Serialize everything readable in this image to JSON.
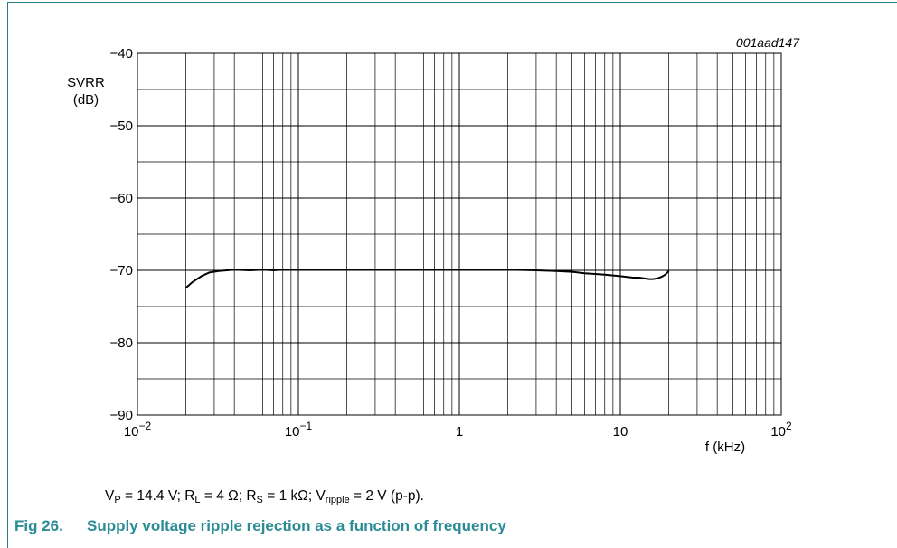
{
  "figure": {
    "doc_code": "001aad147",
    "conditions": {
      "vp": "14.4 V",
      "rl": "4 Ω",
      "rs": "1 kΩ",
      "vripple": "2 V (p-p)."
    },
    "caption_number": "Fig 26.",
    "caption_text": "Supply voltage ripple rejection as a function of frequency"
  },
  "chart_data": {
    "type": "line",
    "title": "",
    "ylabel_lines": [
      "SVRR",
      "(dB)"
    ],
    "xlabel": "f (kHz)",
    "x_scale": "log",
    "xlim": [
      0.01,
      100
    ],
    "ylim": [
      -90,
      -40
    ],
    "y_major_ticks": [
      -90,
      -80,
      -70,
      -60,
      -50,
      -40
    ],
    "y_tick_labels": [
      "−90",
      "−80",
      "−70",
      "−60",
      "−50",
      "−40"
    ],
    "x_tick_labels": [
      {
        "base": "10",
        "exp": "−2"
      },
      {
        "base": "10",
        "exp": "−1"
      },
      {
        "base": "1",
        "exp": ""
      },
      {
        "base": "10",
        "exp": ""
      },
      {
        "base": "10",
        "exp": "2"
      }
    ],
    "grid": true,
    "series": [
      {
        "x": [
          0.02,
          0.022,
          0.025,
          0.028,
          0.032,
          0.036,
          0.04,
          0.05,
          0.06,
          0.07,
          0.08,
          0.1,
          0.2,
          0.5,
          1,
          2,
          3,
          4,
          5,
          6,
          7,
          8,
          9,
          10,
          11,
          12,
          13,
          14,
          15,
          16,
          17,
          18,
          19,
          20
        ],
        "y": [
          -72.4,
          -71.6,
          -70.8,
          -70.3,
          -70.1,
          -70.0,
          -69.9,
          -70.0,
          -69.9,
          -70.0,
          -69.9,
          -69.9,
          -69.9,
          -69.9,
          -69.9,
          -69.9,
          -70.0,
          -70.1,
          -70.2,
          -70.4,
          -70.5,
          -70.6,
          -70.7,
          -70.8,
          -70.9,
          -71.0,
          -71.0,
          -71.1,
          -71.2,
          -71.2,
          -71.1,
          -70.9,
          -70.6,
          -70.1
        ]
      }
    ]
  }
}
